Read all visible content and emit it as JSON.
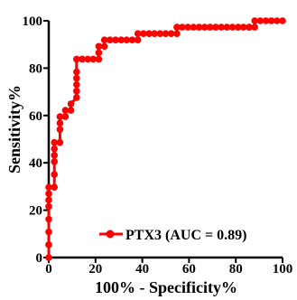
{
  "chart_data": {
    "type": "line",
    "xlabel": "100% - Specificity%",
    "ylabel": "Sensitivity%",
    "xlim": [
      0,
      100
    ],
    "ylim": [
      0,
      100
    ],
    "x_ticks": [
      "0",
      "20",
      "40",
      "60",
      "80",
      "100"
    ],
    "y_ticks": [
      "0",
      "20",
      "40",
      "60",
      "80",
      "100"
    ],
    "grid": false,
    "legend": {
      "position": "bottom-right",
      "label": "PTX3 (AUC = 0.89)"
    },
    "series": [
      {
        "name": "PTX3 (AUC = 0.89)",
        "color": "#ff0000",
        "x": [
          0,
          0,
          0,
          0,
          0,
          0,
          0,
          0,
          2.4,
          2.4,
          2.4,
          2.4,
          2.4,
          2.4,
          4.8,
          4.8,
          4.8,
          4.8,
          7.1,
          7.1,
          9.5,
          9.5,
          11.9,
          11.9,
          11.9,
          11.9,
          11.9,
          11.9,
          14.3,
          16.7,
          19,
          21.4,
          21.4,
          21.4,
          23.8,
          23.8,
          26.2,
          28.6,
          31,
          33.3,
          35.7,
          38.1,
          38.1,
          40.5,
          42.9,
          45.2,
          47.6,
          50,
          52.4,
          54.8,
          54.8,
          57.1,
          59.5,
          61.9,
          64.3,
          66.7,
          69,
          71.4,
          73.8,
          76.2,
          78.6,
          81,
          83.3,
          85.7,
          85.7,
          88.1,
          88.1,
          90.5,
          92.9,
          95.2,
          97.6,
          100
        ],
        "y": [
          0,
          5.4,
          10.8,
          16.2,
          21.6,
          24.3,
          27,
          29.7,
          29.7,
          35.1,
          40.5,
          43.2,
          45.9,
          48.6,
          48.6,
          54.1,
          56.8,
          59.5,
          59.5,
          62.2,
          62.2,
          64.9,
          67.6,
          70.3,
          73,
          75.7,
          78.4,
          83.8,
          83.8,
          83.8,
          83.8,
          83.8,
          86.5,
          89.2,
          89.2,
          91.9,
          91.9,
          91.9,
          91.9,
          91.9,
          91.9,
          91.9,
          94.6,
          94.6,
          94.6,
          94.6,
          94.6,
          94.6,
          94.6,
          94.6,
          97.3,
          97.3,
          97.3,
          97.3,
          97.3,
          97.3,
          97.3,
          97.3,
          97.3,
          97.3,
          97.3,
          97.3,
          97.3,
          97.3,
          97.3,
          97.3,
          100,
          100,
          100,
          100,
          100,
          100
        ]
      }
    ]
  }
}
